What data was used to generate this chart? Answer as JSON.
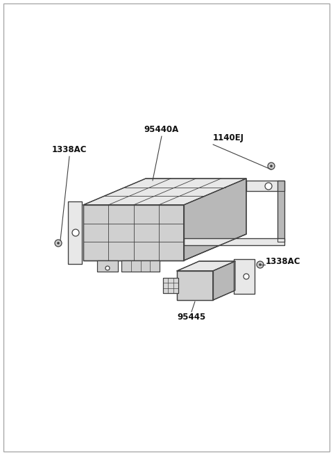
{
  "bg_color": "#ffffff",
  "line_color": "#404040",
  "fill_top": "#e8e8e8",
  "fill_front": "#d0d0d0",
  "fill_right": "#b8b8b8",
  "fill_white": "#ffffff",
  "label_95440A": "95440A",
  "label_1140EJ": "1140EJ",
  "label_1338AC": "1338AC",
  "label_95445": "95445",
  "font_size": 8.5,
  "border_color": "#aaaaaa",
  "screw_fill": "#cccccc"
}
